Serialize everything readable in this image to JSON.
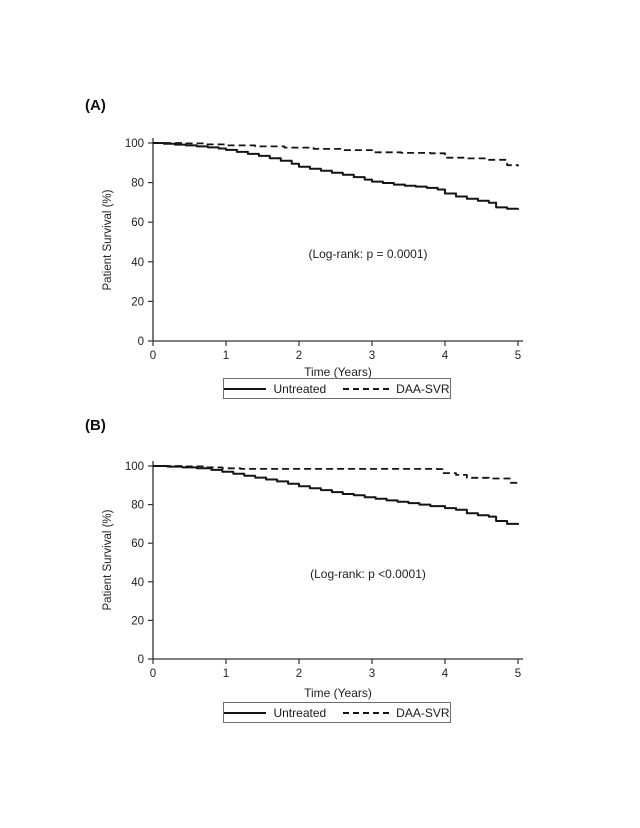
{
  "figure": {
    "panels": [
      {
        "label": "(A)"
      },
      {
        "label": "(B)"
      }
    ]
  },
  "chart_data": [
    {
      "type": "line",
      "subtype": "kaplan-meier-step",
      "panel": "A",
      "xlabel": "Time (Years)",
      "ylabel": "Patient Survival (%)",
      "annotation": "(Log-rank: p = 0.0001)",
      "xlim": [
        0,
        5
      ],
      "ylim": [
        0,
        100
      ],
      "x_ticks": [
        0,
        1,
        2,
        3,
        4,
        5
      ],
      "y_ticks": [
        0,
        20,
        40,
        60,
        80,
        100
      ],
      "grid": false,
      "legend_position": "bottom-center",
      "line_color": "#141414",
      "series": [
        {
          "name": "Untreated",
          "style": "solid",
          "points": [
            [
              0,
              100
            ],
            [
              0.15,
              99.6
            ],
            [
              0.3,
              99.2
            ],
            [
              0.45,
              98.8
            ],
            [
              0.6,
              98.3
            ],
            [
              0.75,
              97.8
            ],
            [
              0.9,
              97.2
            ],
            [
              1.0,
              96.5
            ],
            [
              1.15,
              95.5
            ],
            [
              1.3,
              94.5
            ],
            [
              1.45,
              93.5
            ],
            [
              1.6,
              92.3
            ],
            [
              1.75,
              91.0
            ],
            [
              1.9,
              89.5
            ],
            [
              2.0,
              88.0
            ],
            [
              2.15,
              87.0
            ],
            [
              2.3,
              86.0
            ],
            [
              2.45,
              85.0
            ],
            [
              2.6,
              84.0
            ],
            [
              2.75,
              82.8
            ],
            [
              2.9,
              81.5
            ],
            [
              3.0,
              80.5
            ],
            [
              3.15,
              79.8
            ],
            [
              3.3,
              79.0
            ],
            [
              3.45,
              78.4
            ],
            [
              3.6,
              78.0
            ],
            [
              3.75,
              77.3
            ],
            [
              3.9,
              76.5
            ],
            [
              4.0,
              74.5
            ],
            [
              4.15,
              73.0
            ],
            [
              4.3,
              71.8
            ],
            [
              4.45,
              70.8
            ],
            [
              4.6,
              69.8
            ],
            [
              4.7,
              67.5
            ],
            [
              4.85,
              66.8
            ],
            [
              5.0,
              66.3
            ]
          ]
        },
        {
          "name": "DAA-SVR",
          "style": "dashed",
          "points": [
            [
              0,
              100
            ],
            [
              0.4,
              99.8
            ],
            [
              0.7,
              99.3
            ],
            [
              1.0,
              98.8
            ],
            [
              1.4,
              98.3
            ],
            [
              1.8,
              97.7
            ],
            [
              2.2,
              97.0
            ],
            [
              2.6,
              96.4
            ],
            [
              3.0,
              95.3
            ],
            [
              3.4,
              95.0
            ],
            [
              3.8,
              94.8
            ],
            [
              4.0,
              92.6
            ],
            [
              4.3,
              92.2
            ],
            [
              4.6,
              91.5
            ],
            [
              4.85,
              88.8
            ],
            [
              5.0,
              88.2
            ]
          ]
        }
      ]
    },
    {
      "type": "line",
      "subtype": "kaplan-meier-step",
      "panel": "B",
      "xlabel": "Time (Years)",
      "ylabel": "Patient Survival (%)",
      "annotation": "(Log-rank: p <0.0001)",
      "xlim": [
        0,
        5
      ],
      "ylim": [
        0,
        100
      ],
      "x_ticks": [
        0,
        1,
        2,
        3,
        4,
        5
      ],
      "y_ticks": [
        0,
        20,
        40,
        60,
        80,
        100
      ],
      "grid": false,
      "legend_position": "bottom-center",
      "line_color": "#141414",
      "series": [
        {
          "name": "Untreated",
          "style": "solid",
          "points": [
            [
              0,
              100
            ],
            [
              0.2,
              99.7
            ],
            [
              0.4,
              99.3
            ],
            [
              0.6,
              98.8
            ],
            [
              0.8,
              98.0
            ],
            [
              0.95,
              97.0
            ],
            [
              1.1,
              96.0
            ],
            [
              1.25,
              95.0
            ],
            [
              1.4,
              94.0
            ],
            [
              1.55,
              93.0
            ],
            [
              1.7,
              92.0
            ],
            [
              1.85,
              90.8
            ],
            [
              2.0,
              89.5
            ],
            [
              2.15,
              88.5
            ],
            [
              2.3,
              87.5
            ],
            [
              2.45,
              86.5
            ],
            [
              2.6,
              85.5
            ],
            [
              2.75,
              84.8
            ],
            [
              2.9,
              83.8
            ],
            [
              3.05,
              83.0
            ],
            [
              3.2,
              82.2
            ],
            [
              3.35,
              81.5
            ],
            [
              3.5,
              80.8
            ],
            [
              3.65,
              80.0
            ],
            [
              3.8,
              79.2
            ],
            [
              4.0,
              78.2
            ],
            [
              4.15,
              77.3
            ],
            [
              4.3,
              75.5
            ],
            [
              4.45,
              74.5
            ],
            [
              4.6,
              73.8
            ],
            [
              4.7,
              71.5
            ],
            [
              4.85,
              70.0
            ],
            [
              5.0,
              69.5
            ]
          ]
        },
        {
          "name": "DAA-SVR",
          "style": "dashed",
          "points": [
            [
              0,
              100
            ],
            [
              0.45,
              99.8
            ],
            [
              0.7,
              99.3
            ],
            [
              0.95,
              98.8
            ],
            [
              1.2,
              98.5
            ],
            [
              3.9,
              98.4
            ],
            [
              3.97,
              96.3
            ],
            [
              4.15,
              95.4
            ],
            [
              4.3,
              93.9
            ],
            [
              4.6,
              93.5
            ],
            [
              4.9,
              91.3
            ],
            [
              5.0,
              91.0
            ]
          ]
        }
      ]
    }
  ]
}
